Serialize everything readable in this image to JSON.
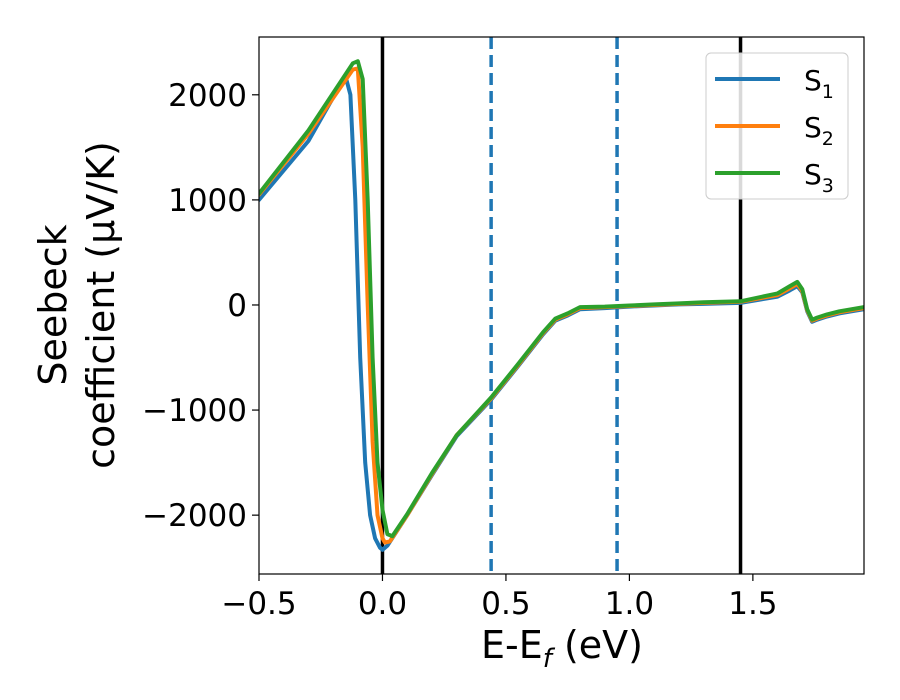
{
  "chart_data": {
    "type": "line",
    "xlabel": "E-E_f (eV)",
    "xlabel_main": "E-E",
    "xlabel_sub": "f",
    "xlabel_tail": " (eV)",
    "ylabel_line1": "Seebeck",
    "ylabel_line2": "coefficient  (μV/K)",
    "xlim": [
      -0.5,
      1.95
    ],
    "ylim": [
      -2560,
      2550
    ],
    "xticks": [
      -0.5,
      0.0,
      0.5,
      1.0,
      1.5
    ],
    "xtick_labels": [
      "−0.5",
      "0.0",
      "0.5",
      "1.0",
      "1.5"
    ],
    "yticks": [
      -2000,
      -1000,
      0,
      1000,
      2000
    ],
    "ytick_labels": [
      "−2000",
      "−1000",
      "0",
      "1000",
      "2000"
    ],
    "grid": false,
    "legend_position": "top-right",
    "vertical_lines": [
      {
        "x": 0.0,
        "style": "solid",
        "color": "#000000"
      },
      {
        "x": 0.44,
        "style": "dashed",
        "color": "#1f77b4"
      },
      {
        "x": 0.95,
        "style": "dashed",
        "color": "#1f77b4"
      },
      {
        "x": 1.45,
        "style": "solid",
        "color": "#000000"
      }
    ],
    "series": [
      {
        "name": "S_1",
        "name_main": "S",
        "name_sub": "1",
        "color": "#1f77b4",
        "x": [
          -0.5,
          -0.3,
          -0.15,
          -0.13,
          -0.11,
          -0.09,
          -0.07,
          -0.05,
          -0.03,
          -0.01,
          0.0,
          0.02,
          0.1,
          0.2,
          0.3,
          0.44,
          0.55,
          0.65,
          0.7,
          0.75,
          0.8,
          0.9,
          1.0,
          1.1,
          1.2,
          1.3,
          1.45,
          1.6,
          1.65,
          1.68,
          1.7,
          1.72,
          1.74,
          1.76,
          1.8,
          1.85,
          1.9,
          1.95
        ],
        "y": [
          1000,
          1560,
          2180,
          2000,
          1000,
          -500,
          -1500,
          -2000,
          -2220,
          -2310,
          -2330,
          -2290,
          -2000,
          -1620,
          -1250,
          -900,
          -580,
          -280,
          -150,
          -100,
          -40,
          -30,
          -15,
          -5,
          5,
          10,
          20,
          80,
          140,
          180,
          120,
          -60,
          -160,
          -140,
          -110,
          -80,
          -60,
          -40
        ]
      },
      {
        "name": "S_2",
        "name_main": "S",
        "name_sub": "2",
        "color": "#ff7f0e",
        "x": [
          -0.5,
          -0.3,
          -0.12,
          -0.1,
          -0.08,
          -0.06,
          -0.04,
          -0.02,
          0.0,
          0.01,
          0.03,
          0.1,
          0.2,
          0.3,
          0.44,
          0.55,
          0.65,
          0.7,
          0.75,
          0.8,
          0.9,
          1.0,
          1.1,
          1.2,
          1.3,
          1.45,
          1.6,
          1.65,
          1.68,
          1.7,
          1.72,
          1.74,
          1.76,
          1.8,
          1.85,
          1.9,
          1.95
        ],
        "y": [
          1050,
          1630,
          2240,
          2250,
          1500,
          0,
          -1300,
          -2000,
          -2220,
          -2260,
          -2250,
          -2000,
          -1610,
          -1240,
          -890,
          -570,
          -270,
          -140,
          -90,
          -30,
          -20,
          -10,
          0,
          10,
          20,
          30,
          95,
          160,
          200,
          130,
          -50,
          -150,
          -130,
          -100,
          -70,
          -50,
          -30
        ]
      },
      {
        "name": "S_3",
        "name_main": "S",
        "name_sub": "3",
        "color": "#2ca02c",
        "x": [
          -0.5,
          -0.3,
          -0.12,
          -0.1,
          -0.08,
          -0.06,
          -0.04,
          -0.02,
          0.0,
          0.02,
          0.04,
          0.1,
          0.2,
          0.3,
          0.44,
          0.55,
          0.65,
          0.7,
          0.75,
          0.8,
          0.9,
          1.0,
          1.1,
          1.2,
          1.3,
          1.45,
          1.6,
          1.65,
          1.68,
          1.7,
          1.72,
          1.74,
          1.76,
          1.8,
          1.85,
          1.9,
          1.95
        ],
        "y": [
          1060,
          1660,
          2300,
          2320,
          2150,
          1000,
          -500,
          -1500,
          -1950,
          -2180,
          -2200,
          -1990,
          -1600,
          -1240,
          -880,
          -560,
          -260,
          -130,
          -80,
          -20,
          -15,
          -5,
          5,
          15,
          25,
          35,
          110,
          180,
          220,
          150,
          -40,
          -140,
          -120,
          -90,
          -60,
          -40,
          -20
        ]
      }
    ]
  }
}
